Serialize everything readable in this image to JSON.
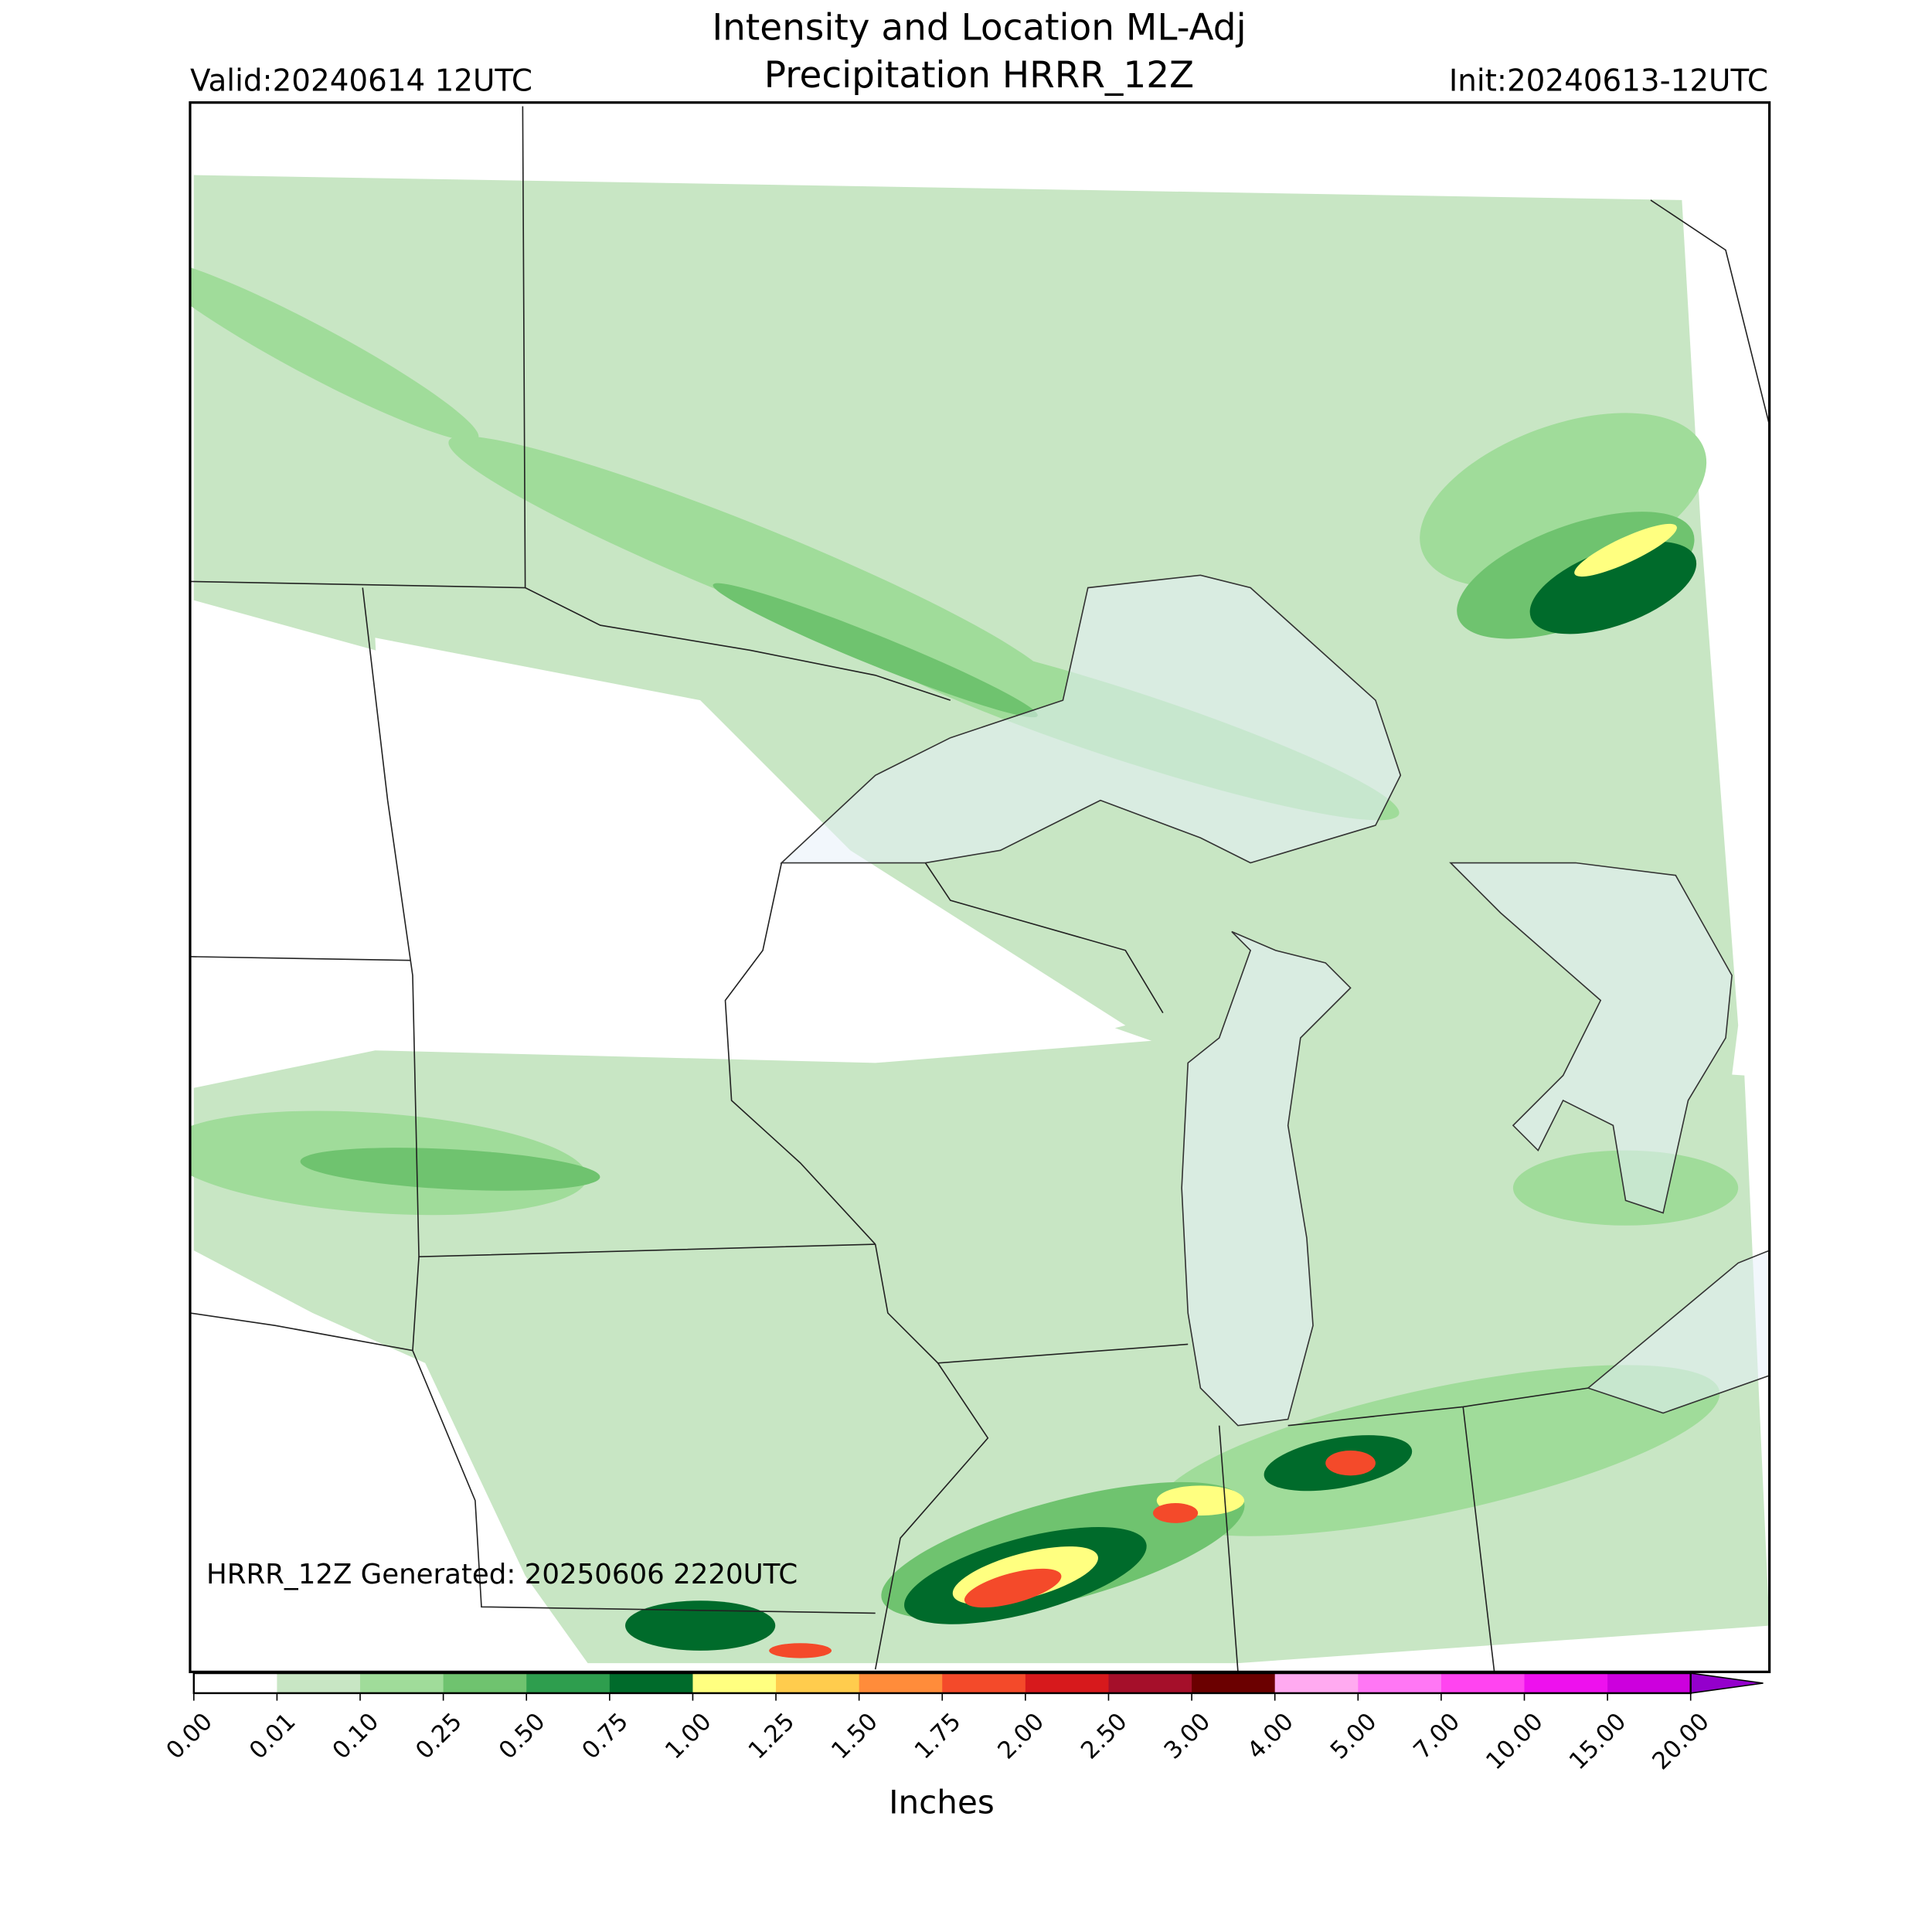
{
  "header": {
    "title_line1": "Intensity and Location ML-Adj",
    "title_line2": "Precipitation HRRR_12Z",
    "valid": "Valid:20240614 12UTC",
    "init": "Init:20240613-12UTC"
  },
  "map": {
    "note": "HRRR_12Z Generated: 20250606 2220UTC"
  },
  "colorbar": {
    "label": "Inches",
    "ticks": [
      {
        "value": 0,
        "label": "0.00"
      },
      {
        "value": 0.01,
        "label": "0.01"
      },
      {
        "value": 0.1,
        "label": "0.10"
      },
      {
        "value": 0.25,
        "label": "0.25"
      },
      {
        "value": 0.5,
        "label": "0.50"
      },
      {
        "value": 0.75,
        "label": "0.75"
      },
      {
        "value": 1,
        "label": "1.00"
      },
      {
        "value": 1.25,
        "label": "1.25"
      },
      {
        "value": 1.5,
        "label": "1.50"
      },
      {
        "value": 1.75,
        "label": "1.75"
      },
      {
        "value": 2,
        "label": "2.00"
      },
      {
        "value": 2.5,
        "label": "2.50"
      },
      {
        "value": 3,
        "label": "3.00"
      },
      {
        "value": 4,
        "label": "4.00"
      },
      {
        "value": 5,
        "label": "5.00"
      },
      {
        "value": 7,
        "label": "7.00"
      },
      {
        "value": 10,
        "label": "10.00"
      },
      {
        "value": 15,
        "label": "15.00"
      },
      {
        "value": 20,
        "label": "20.00"
      }
    ],
    "colors": [
      "#ffffff",
      "#c8e6c4",
      "#a0dc9a",
      "#6fc36f",
      "#2e9e4e",
      "#006b2b",
      "#ffff80",
      "#ffcc4d",
      "#ff8c3a",
      "#f44a2a",
      "#d7191c",
      "#a50f2a",
      "#6b0000",
      "#ffaaf0",
      "#ff77f5",
      "#ff44f0",
      "#ee11ee",
      "#cc00dd"
    ],
    "extend_color": "#9400cc"
  }
}
